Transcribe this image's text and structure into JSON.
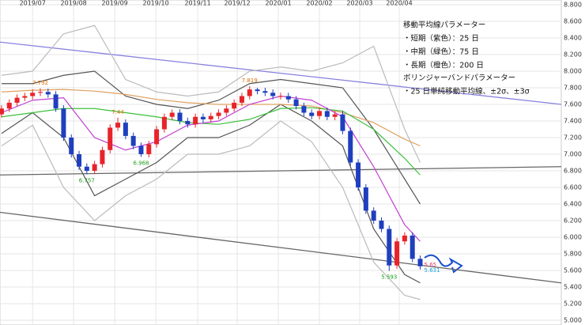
{
  "chart_data": {
    "type": "candlestick",
    "xticks": [
      {
        "value": 4,
        "label": "2019/07"
      },
      {
        "value": 9.3,
        "label": "2019/08"
      },
      {
        "value": 14.6,
        "label": "2019/09"
      },
      {
        "value": 19.9,
        "label": "2019/10"
      },
      {
        "value": 25.3,
        "label": "2019/11"
      },
      {
        "value": 30.4,
        "label": "2019/12"
      },
      {
        "value": 35.7,
        "label": "2020/01"
      },
      {
        "value": 41,
        "label": "2020/02"
      },
      {
        "value": 46.2,
        "label": "2020/03"
      },
      {
        "value": 51.3,
        "label": "2020/04"
      }
    ],
    "xlim": [
      -0.2,
      72.2
    ],
    "ylim": [
      5.0,
      8.8
    ],
    "yticks": [
      {
        "value": 5.0,
        "label": "5.000"
      },
      {
        "value": 5.2,
        "label": "5.200"
      },
      {
        "value": 5.4,
        "label": "5.400"
      },
      {
        "value": 5.6,
        "label": "5.600"
      },
      {
        "value": 5.8,
        "label": "5.800"
      },
      {
        "value": 6.0,
        "label": "6.000"
      },
      {
        "value": 6.2,
        "label": "6.200"
      },
      {
        "value": 6.4,
        "label": "6.400"
      },
      {
        "value": 6.6,
        "label": "6.600"
      },
      {
        "value": 6.8,
        "label": "6.800"
      },
      {
        "value": 7.0,
        "label": "7.000"
      },
      {
        "value": 7.2,
        "label": "7.200"
      },
      {
        "value": 7.4,
        "label": "7.400"
      },
      {
        "value": 7.6,
        "label": "7.600"
      },
      {
        "value": 7.8,
        "label": "7.800"
      },
      {
        "value": 8.0,
        "label": "8.000"
      },
      {
        "value": 8.2,
        "label": "8.200"
      },
      {
        "value": 8.4,
        "label": "8.400"
      },
      {
        "value": 8.6,
        "label": "8.600"
      },
      {
        "value": 8.8,
        "label": "8.800"
      }
    ],
    "grid": true,
    "up_color": "#e8232a",
    "down_color": "#1f3fbf",
    "open": [
      7.48,
      7.55,
      7.62,
      7.68,
      7.7,
      7.74,
      7.75,
      7.72,
      7.55,
      7.2,
      7.0,
      6.85,
      6.8,
      6.88,
      7.05,
      7.32,
      7.38,
      7.22,
      7.1,
      7.0,
      7.12,
      7.3,
      7.45,
      7.5,
      7.4,
      7.36,
      7.45,
      7.42,
      7.46,
      7.5,
      7.55,
      7.62,
      7.7,
      7.78,
      7.76,
      7.74,
      7.7,
      7.7,
      7.66,
      7.58,
      7.5,
      7.46,
      7.52,
      7.45,
      7.48,
      7.28,
      6.9,
      6.6,
      6.32,
      6.2,
      6.1,
      5.66,
      5.95,
      6.02,
      5.74
    ],
    "high": [
      7.59,
      7.66,
      7.72,
      7.74,
      7.78,
      7.792,
      7.79,
      7.76,
      7.59,
      7.24,
      7.04,
      6.89,
      6.92,
      7.09,
      7.36,
      7.44,
      7.42,
      7.26,
      7.14,
      7.16,
      7.34,
      7.49,
      7.54,
      7.54,
      7.44,
      7.49,
      7.49,
      7.5,
      7.54,
      7.59,
      7.66,
      7.74,
      7.819,
      7.8,
      7.8,
      7.78,
      7.74,
      7.74,
      7.7,
      7.62,
      7.54,
      7.56,
      7.56,
      7.52,
      7.52,
      7.32,
      6.94,
      6.64,
      6.36,
      6.24,
      6.14,
      5.99,
      6.06,
      6.06,
      5.78
    ],
    "low": [
      7.44,
      7.51,
      7.58,
      7.64,
      7.66,
      7.7,
      7.68,
      7.51,
      7.16,
      6.96,
      6.81,
      6.757,
      6.76,
      6.84,
      7.01,
      7.28,
      7.18,
      7.06,
      6.968,
      6.96,
      7.08,
      7.26,
      7.41,
      7.36,
      7.32,
      7.32,
      7.38,
      7.38,
      7.42,
      7.46,
      7.51,
      7.58,
      7.66,
      7.72,
      7.7,
      7.66,
      7.66,
      7.62,
      7.54,
      7.46,
      7.42,
      7.42,
      7.41,
      7.41,
      7.24,
      6.86,
      6.56,
      6.28,
      6.16,
      6.06,
      5.593,
      5.62,
      5.91,
      5.7,
      5.61
    ],
    "close": [
      7.55,
      7.62,
      7.68,
      7.7,
      7.74,
      7.75,
      7.72,
      7.55,
      7.2,
      7.0,
      6.85,
      6.8,
      6.88,
      7.05,
      7.32,
      7.38,
      7.22,
      7.1,
      7.0,
      7.12,
      7.3,
      7.45,
      7.5,
      7.4,
      7.36,
      7.45,
      7.42,
      7.46,
      7.5,
      7.55,
      7.62,
      7.7,
      7.78,
      7.76,
      7.74,
      7.7,
      7.7,
      7.66,
      7.58,
      7.5,
      7.46,
      7.52,
      7.45,
      7.48,
      7.28,
      6.9,
      6.6,
      6.32,
      6.2,
      6.1,
      5.66,
      5.95,
      6.02,
      5.74,
      5.65
    ],
    "lines_x": [
      0,
      4,
      8,
      12,
      16,
      20,
      24,
      28,
      32,
      36,
      40,
      44,
      48,
      52,
      54
    ],
    "lines": [
      {
        "color": "#bbbbbb",
        "values": [
          7.95,
          8.0,
          8.45,
          8.55,
          7.9,
          7.75,
          7.7,
          7.75,
          8.0,
          8.05,
          8.0,
          8.1,
          8.3,
          7.3,
          6.9
        ]
      },
      {
        "color": "#bbbbbb",
        "values": [
          7.1,
          7.35,
          6.6,
          6.2,
          6.5,
          6.7,
          7.0,
          7.0,
          7.1,
          7.4,
          7.15,
          6.6,
          5.7,
          5.3,
          5.25
        ]
      },
      {
        "color": "#555555",
        "values": [
          7.85,
          7.85,
          7.95,
          8.0,
          7.7,
          7.6,
          7.55,
          7.65,
          7.85,
          7.9,
          7.85,
          7.8,
          7.3,
          6.7,
          6.4
        ]
      },
      {
        "color": "#555555",
        "values": [
          7.25,
          7.5,
          7.2,
          6.5,
          6.7,
          6.9,
          7.2,
          7.2,
          7.35,
          7.6,
          7.4,
          7.1,
          6.1,
          5.55,
          5.45
        ]
      },
      {
        "color": "#e0a060",
        "values": [
          7.75,
          7.77,
          7.78,
          7.76,
          7.72,
          7.66,
          7.62,
          7.6,
          7.6,
          7.6,
          7.58,
          7.5,
          7.38,
          7.18,
          7.1
        ]
      },
      {
        "color": "#3cc03c",
        "values": [
          7.45,
          7.5,
          7.55,
          7.55,
          7.5,
          7.45,
          7.38,
          7.36,
          7.42,
          7.55,
          7.56,
          7.52,
          7.3,
          6.95,
          6.75
        ]
      },
      {
        "color": "#c040d0",
        "values": [
          7.5,
          7.65,
          7.68,
          7.2,
          7.05,
          7.15,
          7.35,
          7.4,
          7.6,
          7.7,
          7.65,
          7.45,
          6.85,
          6.15,
          5.95
        ]
      }
    ],
    "trendlines": [
      {
        "color": "#8a82e0",
        "values": [
          8.35,
          7.6
        ]
      },
      {
        "color": "#666666",
        "values": [
          6.75,
          6.85
        ]
      },
      {
        "color": "#666666",
        "values": [
          6.3,
          5.45
        ]
      }
    ],
    "annotations": [
      {
        "value": 7.792,
        "color": "#e06c00"
      },
      {
        "value": 7.44,
        "color": "#e06c00"
      },
      {
        "value": 7.819,
        "color": "#e06c00"
      },
      {
        "value": 6.757,
        "color": "#1a9e1a"
      },
      {
        "value": 6.968,
        "color": "#1a9e1a"
      },
      {
        "value": 5.593,
        "color": "#1a9e1a"
      },
      {
        "value": 5.65,
        "color": "#e04070"
      },
      {
        "value": 5.631,
        "color": "#1aa0e0"
      }
    ],
    "legend_text": [
      "移動平均線パラメーター",
      "・短期（紫色）：25 日",
      "・中期（緑色）：75 日",
      "・長期（橙色）：200 日",
      "ボリンジャーバンドパラメーター",
      "・25 日単純移動平均線、±2σ、±3σ"
    ]
  }
}
